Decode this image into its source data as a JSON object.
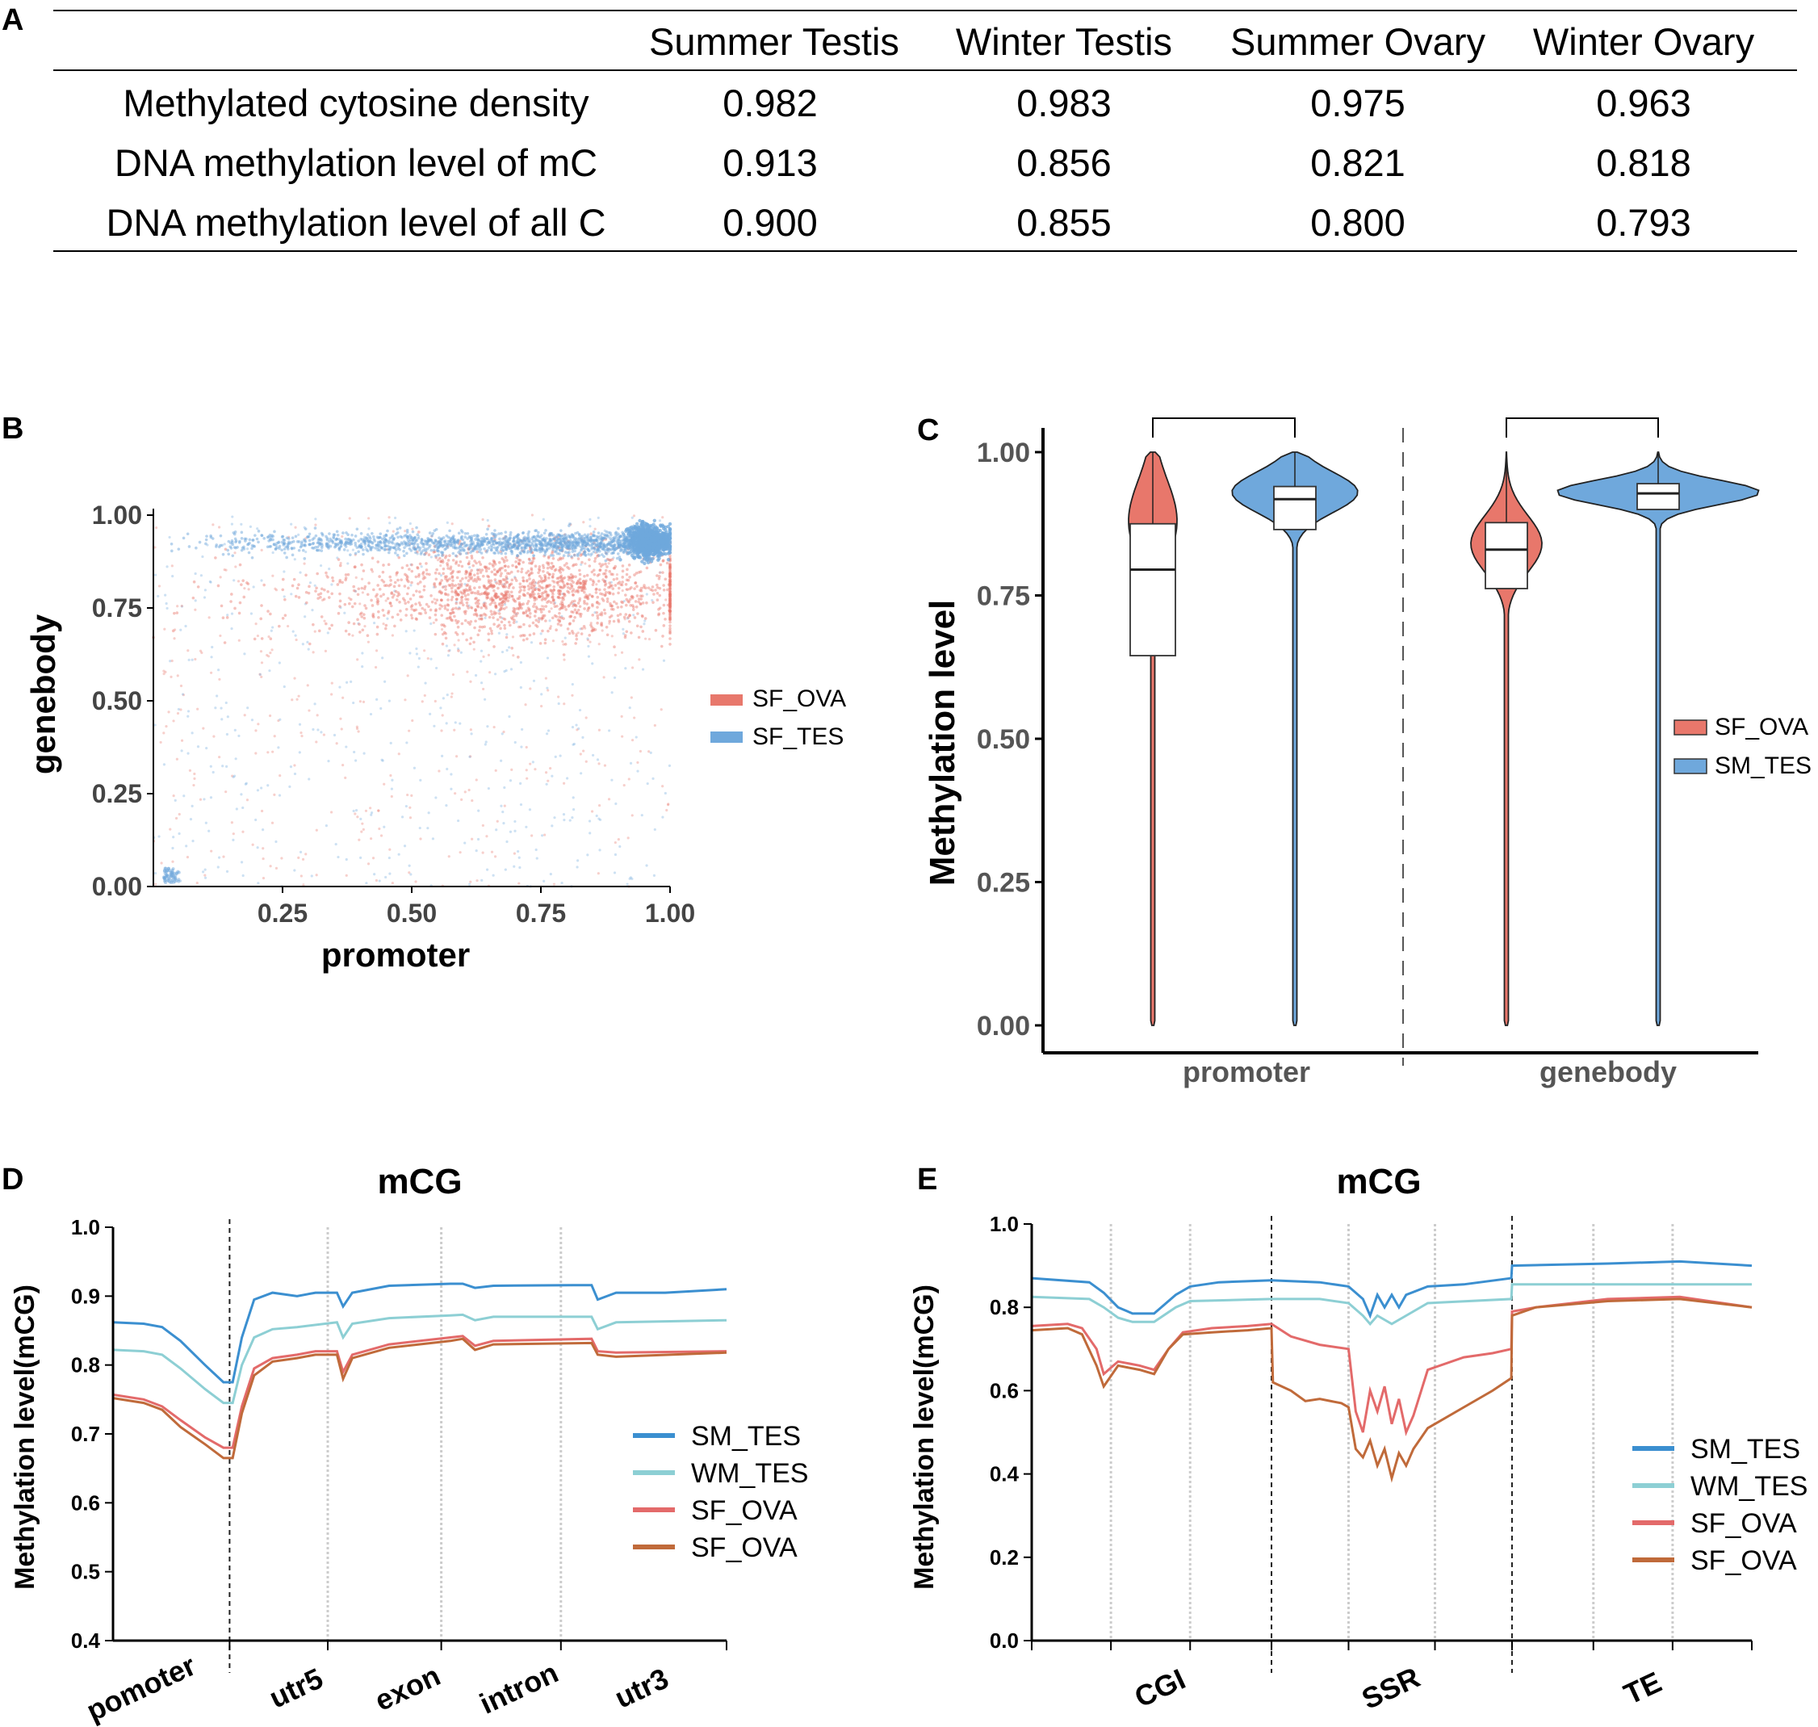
{
  "panels": {
    "A": "A",
    "B": "B",
    "C": "C",
    "D": "D",
    "E": "E"
  },
  "table": {
    "columns": [
      "Summer Testis",
      "Winter Testis",
      "Summer Ovary",
      "Winter Ovary"
    ],
    "rows": [
      {
        "label": "Methylated cytosine density",
        "values": [
          "0.982",
          "0.983",
          "0.975",
          "0.963"
        ]
      },
      {
        "label": "DNA methylation level of mC",
        "values": [
          "0.913",
          "0.856",
          "0.821",
          "0.818"
        ]
      },
      {
        "label": "DNA methylation level of all C",
        "values": [
          "0.900",
          "0.855",
          "0.800",
          "0.793"
        ]
      }
    ]
  },
  "chart_data": [
    {
      "type": "scatter",
      "panel": "B",
      "xlabel": "promoter",
      "ylabel": "genebody",
      "xlim": [
        0,
        1
      ],
      "ylim": [
        0,
        1
      ],
      "xticks": [
        "0.25",
        "0.50",
        "0.75",
        "1.00"
      ],
      "yticks": [
        "0.00",
        "0.25",
        "0.50",
        "0.75",
        "1.00"
      ],
      "series": [
        {
          "name": "SF_OVA",
          "color": "#E8786C",
          "density_center": [
            0.7,
            0.8
          ],
          "note": "dense cloud 0.5-0.95 promoter, 0.7-0.9 genebody"
        },
        {
          "name": "SF_TES",
          "color": "#6FA8DC",
          "density_center": [
            0.95,
            0.92
          ],
          "note": "dense band at genebody ~0.9-0.95 across promoter"
        }
      ]
    },
    {
      "type": "violin",
      "panel": "C",
      "ylabel": "Methylation level",
      "categories": [
        "promoter",
        "genebody"
      ],
      "ylim": [
        0,
        1
      ],
      "yticks": [
        "0.00",
        "0.25",
        "0.50",
        "0.75",
        "1.00"
      ],
      "series": [
        {
          "name": "SF_OVA",
          "color": "#E8776B",
          "promoter": {
            "q1": 0.645,
            "median": 0.795,
            "q3": 0.875,
            "min": 0.0,
            "max": 1.0
          },
          "genebody": {
            "q1": 0.762,
            "median": 0.83,
            "q3": 0.877,
            "min": 0.0,
            "max": 1.0
          }
        },
        {
          "name": "SM_TES",
          "color": "#6FA8DC",
          "promoter": {
            "q1": 0.865,
            "median": 0.918,
            "q3": 0.94,
            "min": 0.0,
            "max": 1.0
          },
          "genebody": {
            "q1": 0.9,
            "median": 0.928,
            "q3": 0.945,
            "min": 0.0,
            "max": 1.0
          }
        }
      ]
    },
    {
      "type": "line",
      "panel": "D",
      "title": "mCG",
      "ylabel": "Methylation level(mCG)",
      "ylim": [
        0.4,
        1.0
      ],
      "yticks": [
        "0.4",
        "0.5",
        "0.6",
        "0.7",
        "0.8",
        "0.9",
        "1.0"
      ],
      "regions": [
        "pomoter",
        "utr5",
        "exon",
        "intron",
        "utr3"
      ],
      "series": [
        {
          "name": "SM_TES",
          "color": "#3B8FD0",
          "points": [
            [
              0,
              0.862
            ],
            [
              0.05,
              0.86
            ],
            [
              0.08,
              0.855
            ],
            [
              0.11,
              0.835
            ],
            [
              0.15,
              0.8
            ],
            [
              0.18,
              0.775
            ],
            [
              0.195,
              0.775
            ],
            [
              0.21,
              0.84
            ],
            [
              0.23,
              0.895
            ],
            [
              0.26,
              0.905
            ],
            [
              0.3,
              0.9
            ],
            [
              0.33,
              0.905
            ],
            [
              0.365,
              0.905
            ],
            [
              0.375,
              0.885
            ],
            [
              0.39,
              0.905
            ],
            [
              0.45,
              0.915
            ],
            [
              0.55,
              0.918
            ],
            [
              0.57,
              0.918
            ],
            [
              0.59,
              0.912
            ],
            [
              0.62,
              0.915
            ],
            [
              0.75,
              0.916
            ],
            [
              0.78,
              0.916
            ],
            [
              0.79,
              0.895
            ],
            [
              0.82,
              0.905
            ],
            [
              0.9,
              0.905
            ],
            [
              1.0,
              0.91
            ]
          ]
        },
        {
          "name": "WM_TES",
          "color": "#8DCFD4",
          "points": [
            [
              0,
              0.822
            ],
            [
              0.05,
              0.82
            ],
            [
              0.08,
              0.815
            ],
            [
              0.11,
              0.795
            ],
            [
              0.15,
              0.765
            ],
            [
              0.18,
              0.745
            ],
            [
              0.195,
              0.745
            ],
            [
              0.21,
              0.8
            ],
            [
              0.23,
              0.84
            ],
            [
              0.26,
              0.852
            ],
            [
              0.3,
              0.855
            ],
            [
              0.365,
              0.862
            ],
            [
              0.375,
              0.84
            ],
            [
              0.39,
              0.86
            ],
            [
              0.45,
              0.868
            ],
            [
              0.55,
              0.872
            ],
            [
              0.57,
              0.873
            ],
            [
              0.59,
              0.865
            ],
            [
              0.62,
              0.87
            ],
            [
              0.78,
              0.87
            ],
            [
              0.79,
              0.852
            ],
            [
              0.82,
              0.862
            ],
            [
              1.0,
              0.865
            ]
          ]
        },
        {
          "name": "SF_OVA",
          "color": "#E36A6A",
          "points": [
            [
              0,
              0.757
            ],
            [
              0.05,
              0.75
            ],
            [
              0.08,
              0.74
            ],
            [
              0.11,
              0.72
            ],
            [
              0.15,
              0.695
            ],
            [
              0.18,
              0.68
            ],
            [
              0.195,
              0.68
            ],
            [
              0.21,
              0.74
            ],
            [
              0.23,
              0.795
            ],
            [
              0.26,
              0.81
            ],
            [
              0.3,
              0.815
            ],
            [
              0.33,
              0.82
            ],
            [
              0.365,
              0.82
            ],
            [
              0.375,
              0.79
            ],
            [
              0.39,
              0.815
            ],
            [
              0.45,
              0.83
            ],
            [
              0.55,
              0.84
            ],
            [
              0.57,
              0.842
            ],
            [
              0.59,
              0.828
            ],
            [
              0.62,
              0.835
            ],
            [
              0.78,
              0.838
            ],
            [
              0.79,
              0.82
            ],
            [
              0.82,
              0.818
            ],
            [
              1.0,
              0.82
            ]
          ]
        },
        {
          "name": "SF_OVA",
          "color": "#C06A3A",
          "points": [
            [
              0,
              0.752
            ],
            [
              0.05,
              0.745
            ],
            [
              0.08,
              0.735
            ],
            [
              0.11,
              0.71
            ],
            [
              0.15,
              0.685
            ],
            [
              0.18,
              0.665
            ],
            [
              0.195,
              0.665
            ],
            [
              0.21,
              0.73
            ],
            [
              0.23,
              0.785
            ],
            [
              0.26,
              0.805
            ],
            [
              0.3,
              0.81
            ],
            [
              0.33,
              0.815
            ],
            [
              0.365,
              0.815
            ],
            [
              0.375,
              0.78
            ],
            [
              0.39,
              0.81
            ],
            [
              0.45,
              0.825
            ],
            [
              0.55,
              0.835
            ],
            [
              0.57,
              0.838
            ],
            [
              0.59,
              0.822
            ],
            [
              0.62,
              0.83
            ],
            [
              0.78,
              0.832
            ],
            [
              0.79,
              0.815
            ],
            [
              0.82,
              0.812
            ],
            [
              1.0,
              0.818
            ]
          ]
        }
      ]
    },
    {
      "type": "line",
      "panel": "E",
      "title": "mCG",
      "ylabel": "Methylation level(mCG)",
      "ylim": [
        0.0,
        1.0
      ],
      "yticks": [
        "0.0",
        "0.2",
        "0.4",
        "0.6",
        "0.8",
        "1.0"
      ],
      "regions": [
        "CGI",
        "SSR",
        "TE"
      ],
      "series": [
        {
          "name": "SM_TES",
          "color": "#3B8FD0",
          "points": [
            [
              0,
              0.87
            ],
            [
              0.08,
              0.86
            ],
            [
              0.1,
              0.835
            ],
            [
              0.12,
              0.8
            ],
            [
              0.14,
              0.785
            ],
            [
              0.17,
              0.785
            ],
            [
              0.2,
              0.83
            ],
            [
              0.22,
              0.85
            ],
            [
              0.26,
              0.86
            ],
            [
              0.333,
              0.865
            ],
            [
              0.4,
              0.86
            ],
            [
              0.44,
              0.85
            ],
            [
              0.46,
              0.82
            ],
            [
              0.47,
              0.78
            ],
            [
              0.48,
              0.83
            ],
            [
              0.49,
              0.8
            ],
            [
              0.5,
              0.83
            ],
            [
              0.51,
              0.8
            ],
            [
              0.52,
              0.83
            ],
            [
              0.55,
              0.85
            ],
            [
              0.6,
              0.855
            ],
            [
              0.666,
              0.87
            ],
            [
              0.667,
              0.9
            ],
            [
              0.8,
              0.905
            ],
            [
              0.9,
              0.91
            ],
            [
              1.0,
              0.9
            ]
          ]
        },
        {
          "name": "WM_TES",
          "color": "#8DCFD4",
          "points": [
            [
              0,
              0.825
            ],
            [
              0.08,
              0.82
            ],
            [
              0.1,
              0.8
            ],
            [
              0.12,
              0.775
            ],
            [
              0.14,
              0.765
            ],
            [
              0.17,
              0.765
            ],
            [
              0.2,
              0.8
            ],
            [
              0.22,
              0.815
            ],
            [
              0.333,
              0.82
            ],
            [
              0.4,
              0.82
            ],
            [
              0.44,
              0.81
            ],
            [
              0.46,
              0.78
            ],
            [
              0.47,
              0.76
            ],
            [
              0.48,
              0.78
            ],
            [
              0.5,
              0.76
            ],
            [
              0.52,
              0.78
            ],
            [
              0.55,
              0.81
            ],
            [
              0.666,
              0.82
            ],
            [
              0.667,
              0.855
            ],
            [
              1.0,
              0.855
            ]
          ]
        },
        {
          "name": "SF_OVA",
          "color": "#E36A6A",
          "points": [
            [
              0,
              0.755
            ],
            [
              0.05,
              0.76
            ],
            [
              0.07,
              0.75
            ],
            [
              0.09,
              0.7
            ],
            [
              0.1,
              0.64
            ],
            [
              0.12,
              0.67
            ],
            [
              0.15,
              0.66
            ],
            [
              0.17,
              0.65
            ],
            [
              0.19,
              0.7
            ],
            [
              0.21,
              0.74
            ],
            [
              0.25,
              0.75
            ],
            [
              0.3,
              0.755
            ],
            [
              0.333,
              0.76
            ],
            [
              0.36,
              0.73
            ],
            [
              0.4,
              0.71
            ],
            [
              0.44,
              0.7
            ],
            [
              0.45,
              0.55
            ],
            [
              0.46,
              0.5
            ],
            [
              0.47,
              0.6
            ],
            [
              0.48,
              0.55
            ],
            [
              0.49,
              0.61
            ],
            [
              0.5,
              0.52
            ],
            [
              0.51,
              0.58
            ],
            [
              0.52,
              0.5
            ],
            [
              0.53,
              0.54
            ],
            [
              0.55,
              0.65
            ],
            [
              0.6,
              0.68
            ],
            [
              0.64,
              0.69
            ],
            [
              0.666,
              0.7
            ],
            [
              0.667,
              0.79
            ],
            [
              0.7,
              0.8
            ],
            [
              0.8,
              0.82
            ],
            [
              0.9,
              0.825
            ],
            [
              1.0,
              0.8
            ]
          ]
        },
        {
          "name": "SF_OVA",
          "color": "#C06A3A",
          "points": [
            [
              0,
              0.745
            ],
            [
              0.05,
              0.75
            ],
            [
              0.07,
              0.735
            ],
            [
              0.09,
              0.66
            ],
            [
              0.1,
              0.61
            ],
            [
              0.12,
              0.66
            ],
            [
              0.15,
              0.65
            ],
            [
              0.17,
              0.64
            ],
            [
              0.19,
              0.7
            ],
            [
              0.21,
              0.735
            ],
            [
              0.25,
              0.74
            ],
            [
              0.3,
              0.745
            ],
            [
              0.333,
              0.75
            ],
            [
              0.335,
              0.62
            ],
            [
              0.36,
              0.6
            ],
            [
              0.38,
              0.575
            ],
            [
              0.4,
              0.58
            ],
            [
              0.43,
              0.57
            ],
            [
              0.44,
              0.56
            ],
            [
              0.45,
              0.46
            ],
            [
              0.46,
              0.44
            ],
            [
              0.47,
              0.48
            ],
            [
              0.48,
              0.42
            ],
            [
              0.49,
              0.46
            ],
            [
              0.5,
              0.39
            ],
            [
              0.51,
              0.45
            ],
            [
              0.52,
              0.42
            ],
            [
              0.53,
              0.46
            ],
            [
              0.55,
              0.51
            ],
            [
              0.6,
              0.56
            ],
            [
              0.64,
              0.6
            ],
            [
              0.666,
              0.63
            ],
            [
              0.667,
              0.78
            ],
            [
              0.7,
              0.8
            ],
            [
              0.8,
              0.815
            ],
            [
              0.9,
              0.82
            ],
            [
              1.0,
              0.8
            ]
          ]
        }
      ]
    }
  ],
  "legendB": [
    "SF_OVA",
    "SF_TES"
  ],
  "legendC": [
    "SF_OVA",
    "SM_TES"
  ],
  "legendD": [
    "SM_TES",
    "WM_TES",
    "SF_OVA",
    "SF_OVA"
  ],
  "legendE": [
    "SM_TES",
    "WM_TES",
    "SF_OVA",
    "SF_OVA"
  ],
  "colors": {
    "ova": "#E8786C",
    "tes": "#6FA8DC",
    "sm": "#3B8FD0",
    "wm": "#8DCFD4",
    "sfova1": "#E36A6A",
    "sfova2": "#C06A3A"
  }
}
